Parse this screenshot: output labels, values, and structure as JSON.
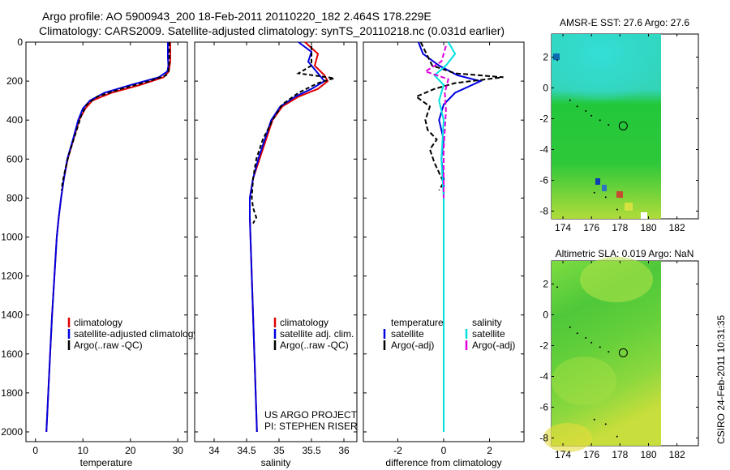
{
  "header": {
    "line1": "Argo profile: AO 5900943_200 18-Feb-2011 20110220_182 2.464S 178.229E",
    "line2": "Climatology: CARS2009. Satellite-adjusted climatology: synTS_20110218.nc (0.031d earlier)"
  },
  "credit": "CSIRO 24-Feb-2011 10:31:35",
  "project": {
    "line1": "US ARGO PROJECT",
    "line2": "PI: STEPHEN RISER"
  },
  "chart_data": [
    {
      "id": "temperature",
      "type": "line",
      "xlabel": "temperature",
      "ylabel": "",
      "xlim": [
        -2,
        32
      ],
      "ylim": [
        2050,
        0
      ],
      "xticks": [
        0,
        10,
        20,
        30
      ],
      "yticks": [
        0,
        200,
        400,
        600,
        800,
        1000,
        1200,
        1400,
        1600,
        1800,
        2000
      ],
      "legend": [
        "climatology",
        "satellite-adjusted climatology",
        "Argo(..raw -QC)"
      ],
      "series": [
        {
          "name": "climatology",
          "color": "#e00000",
          "dash": "",
          "points": [
            [
              28.4,
              0
            ],
            [
              28.4,
              100
            ],
            [
              28.1,
              150
            ],
            [
              27,
              180
            ],
            [
              22,
              220
            ],
            [
              16,
              260
            ],
            [
              12,
              300
            ],
            [
              10.5,
              340
            ],
            [
              9.2,
              400
            ],
            [
              8,
              500
            ],
            [
              6.8,
              600
            ],
            [
              6,
              700
            ],
            [
              5.4,
              800
            ],
            [
              4.9,
              900
            ],
            [
              4.5,
              1000
            ],
            [
              4,
              1200
            ],
            [
              3.5,
              1400
            ],
            [
              3.1,
              1600
            ],
            [
              2.7,
              1800
            ],
            [
              2.3,
              2000
            ]
          ]
        },
        {
          "name": "satellite-adjusted climatology",
          "color": "#0000e0",
          "dash": "",
          "points": [
            [
              27.9,
              0
            ],
            [
              27.9,
              80
            ],
            [
              28,
              120
            ],
            [
              27.8,
              150
            ],
            [
              26,
              180
            ],
            [
              20,
              220
            ],
            [
              14.5,
              260
            ],
            [
              11.5,
              300
            ],
            [
              10,
              340
            ],
            [
              9,
              400
            ],
            [
              7.9,
              500
            ],
            [
              6.7,
              600
            ],
            [
              6,
              700
            ],
            [
              5.4,
              800
            ],
            [
              4.9,
              900
            ],
            [
              4.5,
              1000
            ],
            [
              4,
              1200
            ],
            [
              3.5,
              1400
            ],
            [
              3.1,
              1600
            ],
            [
              2.7,
              1800
            ],
            [
              2.3,
              2000
            ]
          ]
        },
        {
          "name": "Argo(..raw -QC)",
          "color": "#000000",
          "dash": "5,3",
          "points": [
            [
              28.2,
              0
            ],
            [
              28.2,
              100
            ],
            [
              28,
              150
            ],
            [
              27.5,
              170
            ],
            [
              24,
              200
            ],
            [
              18,
              240
            ],
            [
              13,
              280
            ],
            [
              10.8,
              320
            ],
            [
              9.6,
              380
            ],
            [
              8.3,
              480
            ],
            [
              7,
              580
            ],
            [
              6.3,
              650
            ],
            [
              5.7,
              720
            ],
            [
              5.5,
              760
            ]
          ]
        }
      ]
    },
    {
      "id": "salinity",
      "type": "line",
      "xlabel": "salinity",
      "ylabel": "",
      "xlim": [
        33.7,
        36.2
      ],
      "ylim": [
        2050,
        0
      ],
      "xticks": [
        34,
        34.5,
        35,
        35.5,
        36
      ],
      "yticks": [],
      "legend": [
        "climatology",
        "satellite adj. clim.",
        "Argo(..raw -QC)"
      ],
      "series": [
        {
          "name": "climatology",
          "color": "#e00000",
          "dash": "",
          "points": [
            [
              35.4,
              0
            ],
            [
              35.6,
              60
            ],
            [
              35.55,
              120
            ],
            [
              35.7,
              170
            ],
            [
              35.75,
              200
            ],
            [
              35.6,
              240
            ],
            [
              35.3,
              280
            ],
            [
              35.05,
              330
            ],
            [
              34.9,
              400
            ],
            [
              34.8,
              500
            ],
            [
              34.7,
              600
            ],
            [
              34.6,
              700
            ],
            [
              34.55,
              800
            ],
            [
              34.55,
              900
            ],
            [
              34.56,
              1000
            ],
            [
              34.58,
              1200
            ],
            [
              34.6,
              1400
            ],
            [
              34.62,
              1600
            ],
            [
              34.64,
              1800
            ],
            [
              34.66,
              2000
            ]
          ]
        },
        {
          "name": "satellite adj. clim.",
          "color": "#0000e0",
          "dash": "",
          "points": [
            [
              35.3,
              0
            ],
            [
              35.5,
              50
            ],
            [
              35.45,
              100
            ],
            [
              35.6,
              160
            ],
            [
              35.7,
              200
            ],
            [
              35.5,
              240
            ],
            [
              35.25,
              280
            ],
            [
              35.02,
              330
            ],
            [
              34.88,
              400
            ],
            [
              34.78,
              500
            ],
            [
              34.68,
              600
            ],
            [
              34.6,
              700
            ],
            [
              34.55,
              800
            ],
            [
              34.55,
              900
            ],
            [
              34.56,
              1000
            ],
            [
              34.58,
              1200
            ],
            [
              34.6,
              1400
            ],
            [
              34.62,
              1600
            ],
            [
              34.64,
              1800
            ],
            [
              34.66,
              2000
            ]
          ]
        },
        {
          "name": "Argo(..raw -QC)",
          "color": "#000000",
          "dash": "5,3",
          "points": [
            [
              35.5,
              20
            ],
            [
              35.5,
              120
            ],
            [
              35.3,
              160
            ],
            [
              35.85,
              185
            ],
            [
              35.6,
              210
            ],
            [
              35.3,
              260
            ],
            [
              35.05,
              320
            ],
            [
              34.9,
              400
            ],
            [
              34.75,
              500
            ],
            [
              34.65,
              600
            ],
            [
              34.6,
              700
            ],
            [
              34.58,
              800
            ],
            [
              34.6,
              850
            ],
            [
              34.65,
              900
            ],
            [
              34.6,
              930
            ]
          ]
        }
      ]
    },
    {
      "id": "difference",
      "type": "line",
      "xlabel": "difference from climatology",
      "ylabel": "",
      "xlim": [
        -3.5,
        3.5
      ],
      "ylim": [
        2050,
        0
      ],
      "xticks": [
        -2,
        0,
        2
      ],
      "yticks": [],
      "legend_titles": [
        "temperature",
        "salinity"
      ],
      "legend": [
        "satellite",
        "Argo(-adj)",
        "satellite",
        "Argo(-adj)"
      ],
      "series": [
        {
          "name": "temperature satellite",
          "color": "#0000e0",
          "dash": "",
          "points": [
            [
              -1.1,
              0
            ],
            [
              -0.9,
              60
            ],
            [
              -0.2,
              120
            ],
            [
              0.6,
              170
            ],
            [
              1.6,
              200
            ],
            [
              0.5,
              260
            ],
            [
              0,
              320
            ],
            [
              -0.2,
              400
            ],
            [
              0,
              500
            ],
            [
              -0.1,
              600
            ],
            [
              0,
              700
            ],
            [
              0,
              1000
            ],
            [
              0,
              1500
            ],
            [
              0,
              2000
            ]
          ]
        },
        {
          "name": "temperature Argo(-adj)",
          "color": "#000000",
          "dash": "6,3",
          "points": [
            [
              -1,
              0
            ],
            [
              -0.5,
              120
            ],
            [
              0.5,
              160
            ],
            [
              2.6,
              180
            ],
            [
              0.5,
              210
            ],
            [
              -0.4,
              240
            ],
            [
              -1.2,
              280
            ],
            [
              -0.6,
              330
            ],
            [
              -0.8,
              400
            ],
            [
              -0.7,
              450
            ],
            [
              -0.3,
              500
            ],
            [
              -0.6,
              550
            ],
            [
              -0.4,
              620
            ],
            [
              0,
              720
            ],
            [
              -0.2,
              760
            ]
          ]
        },
        {
          "name": "salinity satellite",
          "color": "#00e0e0",
          "dash": "",
          "points": [
            [
              0.2,
              0
            ],
            [
              0.5,
              60
            ],
            [
              0.1,
              120
            ],
            [
              -0.4,
              170
            ],
            [
              0,
              220
            ],
            [
              -0.2,
              300
            ],
            [
              0,
              400
            ],
            [
              -0.1,
              600
            ],
            [
              0,
              800
            ],
            [
              0,
              1000
            ],
            [
              0,
              1500
            ],
            [
              0,
              2000
            ]
          ]
        },
        {
          "name": "salinity Argo(-adj)",
          "color": "#e000e0",
          "dash": "6,3",
          "points": [
            [
              0.1,
              20
            ],
            [
              -0.1,
              100
            ],
            [
              -0.8,
              150
            ],
            [
              0.2,
              190
            ],
            [
              0.05,
              260
            ],
            [
              0.1,
              350
            ],
            [
              0.05,
              450
            ],
            [
              0,
              550
            ],
            [
              0,
              650
            ],
            [
              0,
              800
            ]
          ]
        }
      ]
    },
    {
      "id": "sst-map",
      "type": "heatmap",
      "title": "AMSR-E SST: 27.6 Argo: 27.6",
      "xlim": [
        173.2,
        183.5
      ],
      "ylim": [
        -8.5,
        3.5
      ],
      "xticks": [
        174,
        176,
        178,
        180,
        182
      ],
      "yticks": [
        2,
        0,
        -2,
        -4,
        -6,
        -8
      ],
      "data_xlim": [
        173.2,
        180.2
      ],
      "float_position": [
        178.229,
        -2.464
      ]
    },
    {
      "id": "sla-map",
      "type": "heatmap",
      "title": "Altimetric SLA: 0.019 Argo: NaN",
      "xlim": [
        173.2,
        183.5
      ],
      "ylim": [
        -8.5,
        3.5
      ],
      "xticks": [
        174,
        176,
        178,
        180,
        182
      ],
      "yticks": [
        2,
        0,
        -2,
        -4,
        -6,
        -8
      ],
      "data_xlim": [
        173.2,
        180.2
      ],
      "float_position": [
        178.229,
        -2.464
      ]
    }
  ]
}
